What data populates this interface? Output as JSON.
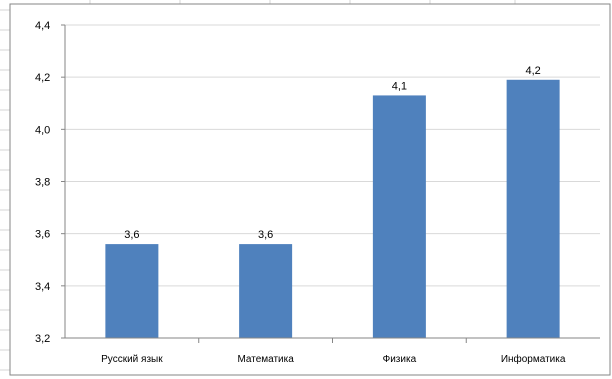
{
  "chart_data": {
    "type": "bar",
    "categories": [
      "Русский язык",
      "Математика",
      "Физика",
      "Информатика"
    ],
    "values": [
      3.56,
      3.56,
      4.13,
      4.19
    ],
    "data_labels": [
      "3,6",
      "3,6",
      "4,1",
      "4,2"
    ],
    "ylim": [
      3.2,
      4.4
    ],
    "yticks": [
      "4,4",
      "4,2",
      "4,0",
      "3,8",
      "3,6",
      "3,4",
      "3,2"
    ],
    "ytick_values": [
      4.4,
      4.2,
      4.0,
      3.8,
      3.6,
      3.4,
      3.2
    ],
    "bar_color": "#4f81bd",
    "grid": true,
    "legend": "none",
    "title": "",
    "xlabel": "",
    "ylabel": ""
  },
  "colors": {
    "background": "#ffffff",
    "spreadsheet_grid": "#d4d4d4",
    "chart_border": "#868686"
  }
}
